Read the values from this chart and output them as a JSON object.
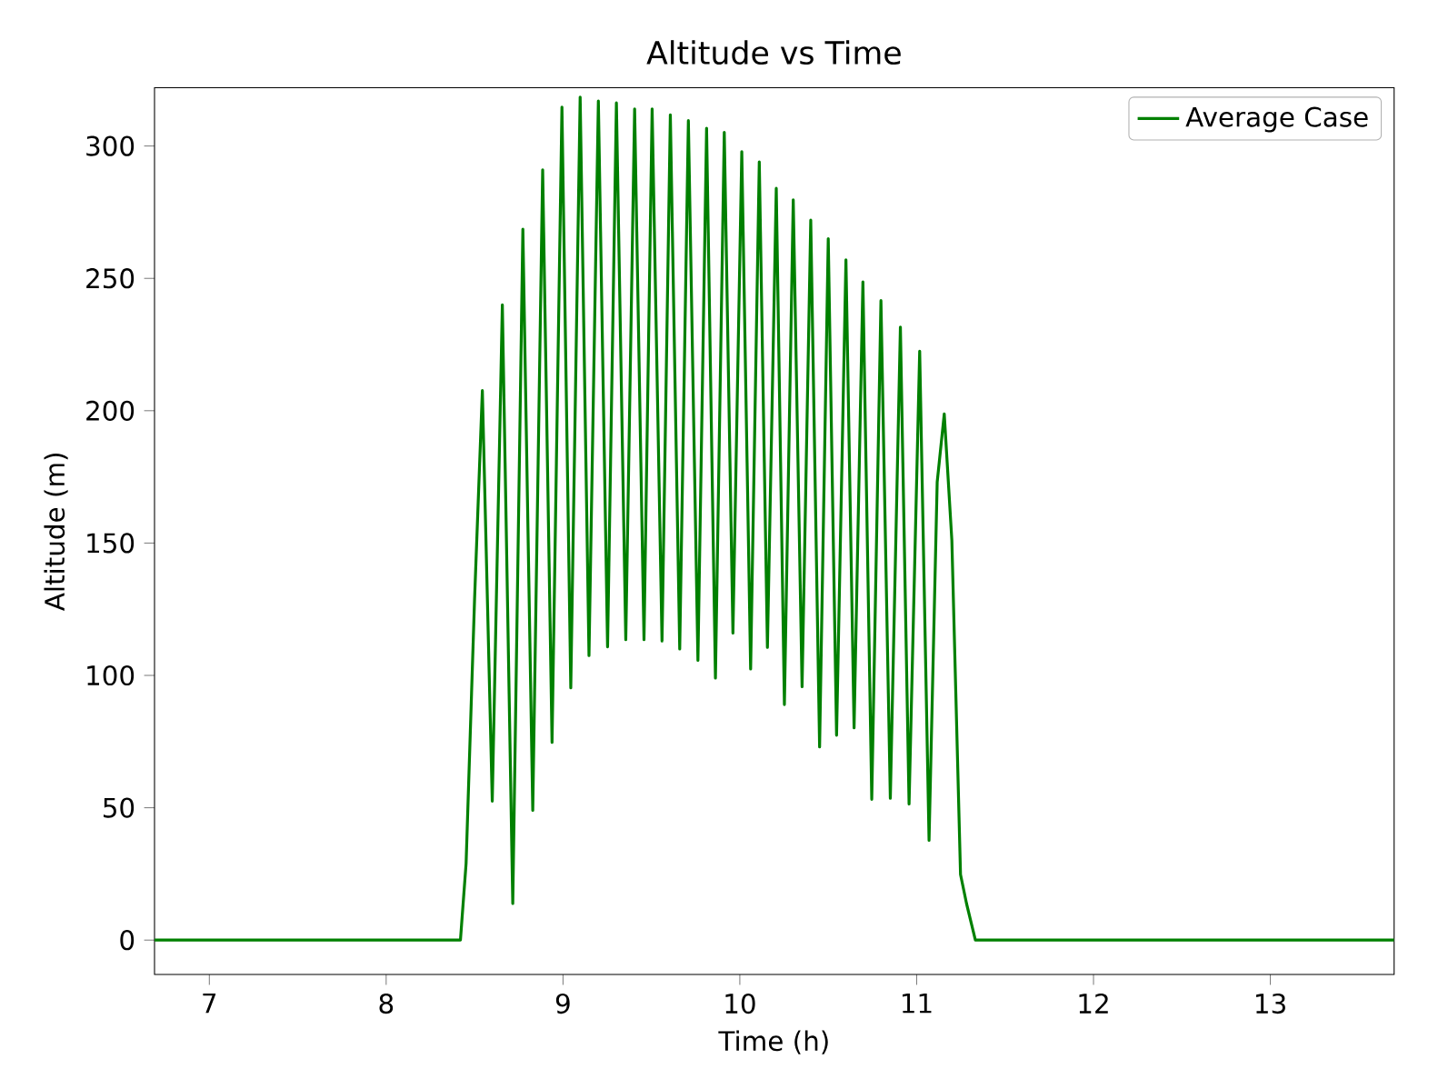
{
  "chart_data": {
    "type": "line",
    "title": "Altitude vs Time",
    "xlabel": "Time (h)",
    "ylabel": "Altitude (m)",
    "xlim": [
      6.69,
      13.7
    ],
    "ylim": [
      -13,
      322
    ],
    "xticks": [
      7,
      8,
      9,
      10,
      11,
      12,
      13
    ],
    "yticks": [
      0,
      50,
      100,
      150,
      200,
      250,
      300
    ],
    "legend": "top right",
    "grid": false,
    "marker": "none",
    "line_style": "solid",
    "series": [
      {
        "name": "Average Case",
        "color": "#008000",
        "x": [
          6.69,
          8.42,
          8.452,
          8.5,
          8.544,
          8.6,
          8.657,
          8.716,
          8.773,
          8.829,
          8.885,
          8.938,
          8.994,
          9.044,
          9.097,
          9.147,
          9.2,
          9.252,
          9.302,
          9.355,
          9.405,
          9.458,
          9.504,
          9.56,
          9.607,
          9.66,
          9.709,
          9.763,
          9.812,
          9.862,
          9.912,
          9.961,
          10.011,
          10.061,
          10.11,
          10.156,
          10.206,
          10.252,
          10.302,
          10.352,
          10.401,
          10.451,
          10.5,
          10.547,
          10.6,
          10.646,
          10.696,
          10.746,
          10.798,
          10.851,
          10.908,
          10.957,
          11.017,
          11.07,
          11.116,
          11.156,
          11.199,
          11.248,
          11.282,
          11.332,
          13.7
        ],
        "values": [
          0,
          0,
          29,
          129,
          207.6,
          52.5,
          240,
          13.8,
          268.6,
          49,
          291,
          74.7,
          314.7,
          95.3,
          318.5,
          107.5,
          317,
          110.8,
          316.3,
          113.5,
          314,
          113.5,
          314,
          113,
          311.8,
          110,
          309.6,
          105.7,
          306.7,
          99,
          305.2,
          116,
          297.9,
          102.4,
          294,
          110.6,
          284,
          89,
          279.7,
          95.7,
          272,
          73,
          265,
          77.4,
          257,
          80.2,
          248.7,
          53.2,
          241.6,
          53.6,
          231.6,
          51.4,
          222.5,
          37.7,
          173,
          198.8,
          151,
          24.8,
          13.8,
          0,
          0
        ]
      }
    ]
  }
}
